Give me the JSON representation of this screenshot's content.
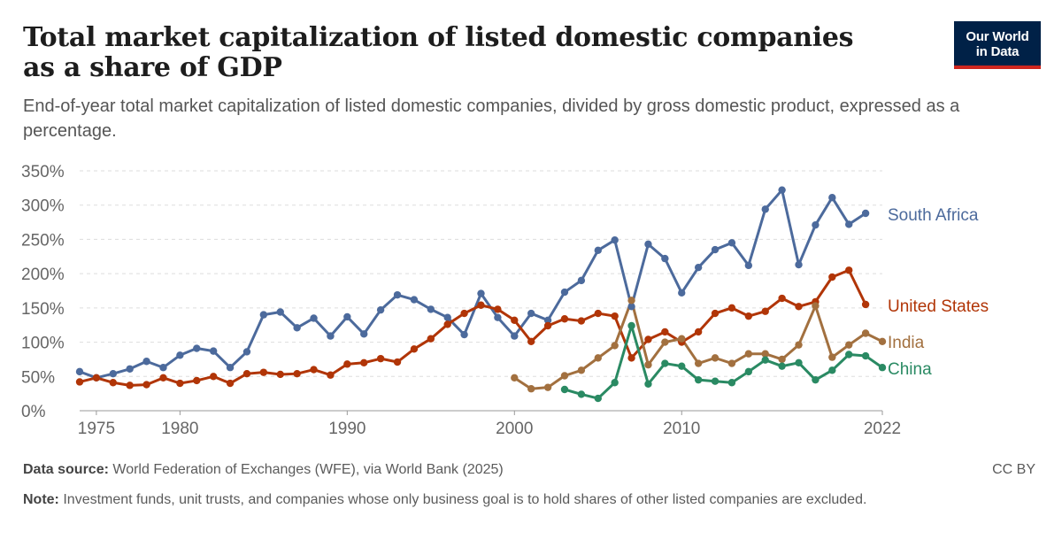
{
  "header": {
    "title": "Total market capitalization of listed domestic companies as a share of GDP",
    "subtitle": "End-of-year total market capitalization of listed domestic companies, divided by gross domestic product, expressed as a percentage."
  },
  "logo": {
    "line1": "Our World",
    "line2": "in Data",
    "bg_color": "#002147",
    "bar_color": "#ce261e"
  },
  "footer": {
    "source_label": "Data source:",
    "source_text": "World Federation of Exchanges (WFE), via World Bank (2025)",
    "note_label": "Note:",
    "note_text": "Investment funds, unit trusts, and companies whose only business goal is to hold shares of other listed companies are excluded.",
    "license": "CC BY"
  },
  "chart_data": {
    "type": "line",
    "xlim": [
      1974,
      2022
    ],
    "ylim": [
      0,
      350
    ],
    "x_ticks": [
      1975,
      1980,
      1990,
      2000,
      2010,
      2022
    ],
    "y_ticks": [
      0,
      50,
      100,
      150,
      200,
      250,
      300,
      350
    ],
    "y_tick_labels": [
      "0%",
      "50%",
      "100%",
      "150%",
      "200%",
      "250%",
      "300%",
      "350%"
    ],
    "grid": true,
    "legend": "end-of-line labels",
    "series": [
      {
        "name": "South Africa",
        "color": "#4c6a9c",
        "x": [
          1974,
          1975,
          1976,
          1977,
          1978,
          1979,
          1980,
          1981,
          1982,
          1983,
          1984,
          1985,
          1986,
          1987,
          1988,
          1989,
          1990,
          1991,
          1992,
          1993,
          1994,
          1995,
          1996,
          1997,
          1998,
          1999,
          2000,
          2001,
          2002,
          2003,
          2004,
          2005,
          2006,
          2007,
          2008,
          2009,
          2010,
          2011,
          2012,
          2013,
          2014,
          2015,
          2016,
          2017,
          2018,
          2019,
          2020,
          2021,
          2022
        ],
        "y": [
          57,
          48,
          54,
          61,
          72,
          63,
          81,
          91,
          87,
          63,
          86,
          140,
          144,
          121,
          135,
          109,
          137,
          112,
          147,
          169,
          162,
          148,
          136,
          111,
          171,
          136,
          109,
          142,
          132,
          173,
          190,
          234,
          249,
          152,
          243,
          222,
          172,
          209,
          235,
          245,
          212,
          294,
          322,
          213,
          271,
          311,
          272,
          288,
          null
        ]
      },
      {
        "name": "United States",
        "color": "#b13507",
        "x": [
          1974,
          1975,
          1976,
          1977,
          1978,
          1979,
          1980,
          1981,
          1982,
          1983,
          1984,
          1985,
          1986,
          1987,
          1988,
          1989,
          1990,
          1991,
          1992,
          1993,
          1994,
          1995,
          1996,
          1997,
          1998,
          1999,
          2000,
          2001,
          2002,
          2003,
          2004,
          2005,
          2006,
          2007,
          2008,
          2009,
          2010,
          2011,
          2012,
          2013,
          2014,
          2015,
          2016,
          2017,
          2018,
          2019,
          2020,
          2021,
          2022
        ],
        "y": [
          42,
          48,
          41,
          37,
          38,
          48,
          40,
          44,
          50,
          40,
          54,
          56,
          53,
          54,
          60,
          52,
          68,
          70,
          76,
          71,
          90,
          105,
          126,
          142,
          154,
          148,
          132,
          101,
          124,
          134,
          131,
          142,
          138,
          77,
          104,
          115,
          100,
          115,
          142,
          150,
          138,
          145,
          164,
          152,
          159,
          195,
          205,
          155,
          null
        ]
      },
      {
        "name": "India",
        "color": "#a2703f",
        "x": [
          2000,
          2001,
          2002,
          2003,
          2004,
          2005,
          2006,
          2007,
          2008,
          2009,
          2010,
          2011,
          2012,
          2013,
          2014,
          2015,
          2016,
          2017,
          2018,
          2019,
          2020,
          2021,
          2022
        ],
        "y": [
          48,
          32,
          34,
          51,
          59,
          77,
          95,
          161,
          67,
          100,
          105,
          69,
          77,
          69,
          83,
          83,
          75,
          96,
          153,
          78,
          96,
          113,
          101
        ]
      },
      {
        "name": "China",
        "color": "#2a8a63",
        "x": [
          2003,
          2004,
          2005,
          2006,
          2007,
          2008,
          2009,
          2010,
          2011,
          2012,
          2013,
          2014,
          2015,
          2016,
          2017,
          2018,
          2019,
          2020,
          2021,
          2022
        ],
        "y": [
          31,
          24,
          18,
          41,
          124,
          39,
          69,
          65,
          45,
          43,
          41,
          57,
          74,
          65,
          70,
          45,
          59,
          82,
          80,
          63
        ]
      }
    ]
  }
}
